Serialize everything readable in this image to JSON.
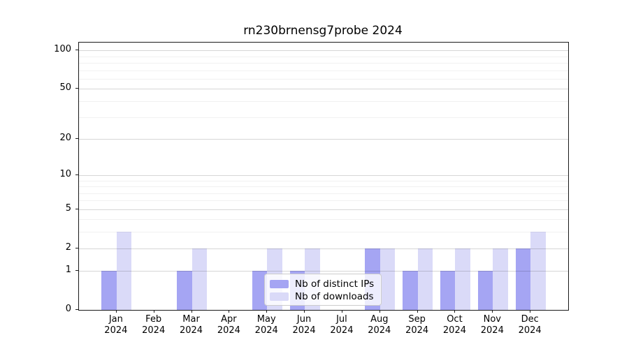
{
  "chart_data": {
    "type": "bar",
    "title": "rn230brnensg7probe 2024",
    "categories": [
      "Jan",
      "Feb",
      "Mar",
      "Apr",
      "May",
      "Jun",
      "Jul",
      "Aug",
      "Sep",
      "Oct",
      "Nov",
      "Dec"
    ],
    "category_year": "2024",
    "series": [
      {
        "name": "Nb of distinct IPs",
        "color": "#a5a5f3",
        "values": [
          1,
          0,
          1,
          0,
          1,
          1,
          0,
          2,
          1,
          1,
          1,
          2
        ]
      },
      {
        "name": "Nb of downloads",
        "color": "#dadaf8",
        "values": [
          3,
          0,
          2,
          0,
          2,
          2,
          0,
          2,
          2,
          2,
          2,
          3
        ]
      }
    ],
    "xlabel": "",
    "ylabel": "",
    "yscale": "log1p",
    "ylim": [
      0,
      118
    ],
    "ytick_values": [
      0,
      1,
      2,
      5,
      10,
      20,
      50,
      100
    ],
    "ytick_labels": [
      "0",
      "1",
      "2",
      "5",
      "10",
      "20",
      "50",
      "100"
    ],
    "minor_ytick_values": [
      3,
      4,
      6,
      7,
      8,
      9,
      30,
      40,
      60,
      70,
      80,
      90
    ],
    "grid": "on",
    "legend_position": "lower-center",
    "bar_group": "side-by-side"
  }
}
